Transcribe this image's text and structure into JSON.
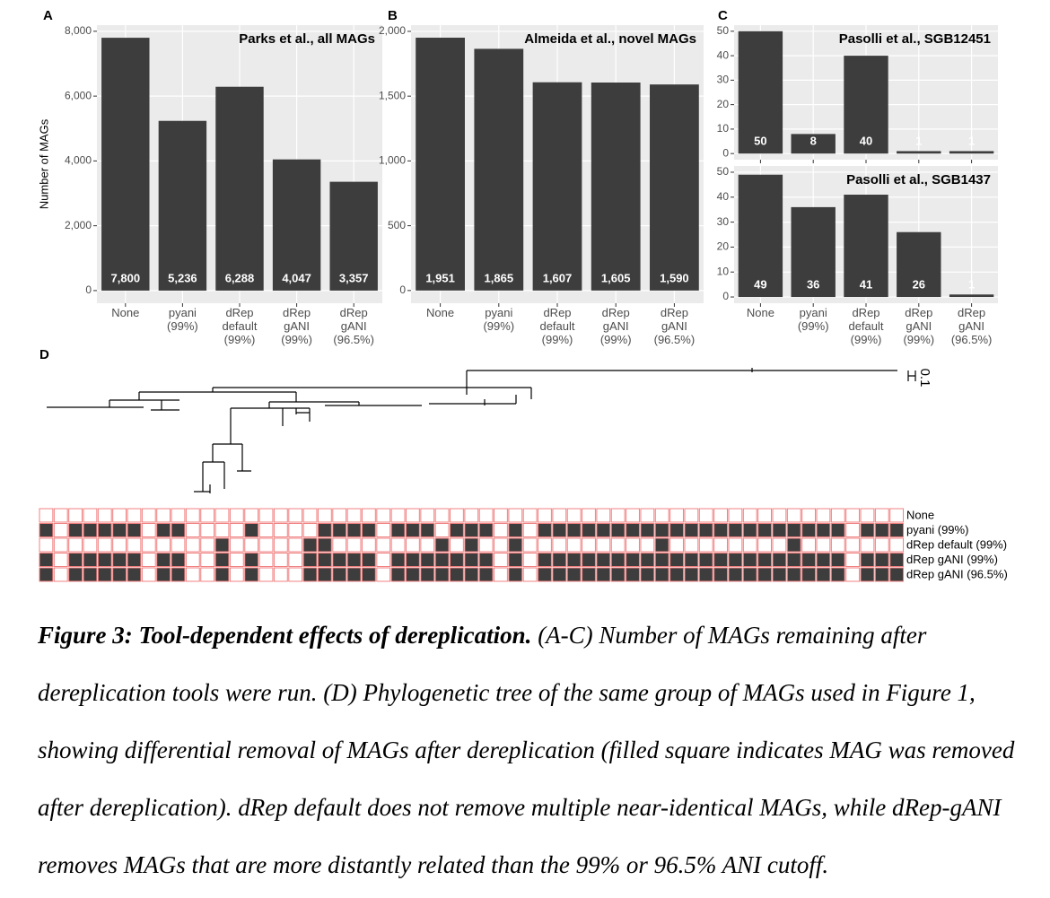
{
  "chart_data": [
    {
      "panel": "A",
      "type": "bar",
      "title": "Parks et al., all MAGs",
      "y_label": "Number of MAGs",
      "categories": [
        [
          "None"
        ],
        [
          "pyani",
          "(99%)"
        ],
        [
          "dRep",
          "default",
          "(99%)"
        ],
        [
          "dRep",
          "gANI",
          "(99%)"
        ],
        [
          "dRep",
          "gANI",
          "(96.5%)"
        ]
      ],
      "values": [
        7800,
        5236,
        6288,
        4047,
        3357
      ],
      "value_labels": [
        "7,800",
        "5,236",
        "6,288",
        "4,047",
        "3,357"
      ],
      "ylim": [
        -390,
        8190
      ],
      "yticks": [
        0,
        {
          "value": 2000,
          "label": "2,000"
        },
        {
          "value": 4000,
          "label": "4,000"
        },
        {
          "value": 6000,
          "label": "6,000"
        },
        {
          "value": 8000,
          "label": "8,000"
        }
      ],
      "color": "#3d3d3d",
      "grid": true
    },
    {
      "panel": "B",
      "type": "bar",
      "title": "Almeida et al., novel MAGs",
      "categories": [
        [
          "None"
        ],
        [
          "pyani",
          "(99%)"
        ],
        [
          "dRep",
          "default",
          "(99%)"
        ],
        [
          "dRep",
          "gANI",
          "(99%)"
        ],
        [
          "dRep",
          "gANI",
          "(96.5%)"
        ]
      ],
      "values": [
        1951,
        1865,
        1607,
        1605,
        1590
      ],
      "value_labels": [
        "1,951",
        "1,865",
        "1,607",
        "1,605",
        "1,590"
      ],
      "ylim": [
        -98,
        2048
      ],
      "yticks": [
        0,
        500,
        {
          "value": 1000,
          "label": "1,000"
        },
        {
          "value": 1500,
          "label": "1,500"
        },
        {
          "value": 2000,
          "label": "2,000"
        }
      ],
      "color": "#3d3d3d",
      "grid": true
    },
    {
      "panel": "C",
      "type": "bar",
      "title": "Pasolli et al., SGB12451",
      "values": [
        50,
        8,
        40,
        1,
        1
      ],
      "ylim": [
        -2.5,
        52.5
      ],
      "yticks": [
        0,
        10,
        20,
        30,
        40,
        50
      ],
      "color": "#3d3d3d",
      "grid": true
    },
    {
      "type": "bar",
      "title": "Pasolli et al., SGB1437",
      "categories": [
        [
          "None"
        ],
        [
          "pyani",
          "(99%)"
        ],
        [
          "dRep",
          "default",
          "(99%)"
        ],
        [
          "dRep",
          "gANI",
          "(99%)"
        ],
        [
          "dRep",
          "gANI",
          "(96.5%)"
        ]
      ],
      "values": [
        49,
        36,
        41,
        26,
        1
      ],
      "ylim": [
        -2.5,
        52.5
      ],
      "yticks": [
        0,
        10,
        20,
        30,
        40,
        50
      ],
      "color": "#3d3d3d",
      "grid": true
    }
  ],
  "heatmap": {
    "panel": "D",
    "filled_color": "#3d3d3d",
    "empty_color": "#ffffff",
    "border_color": "#f08080",
    "rows": [
      {
        "name": "None",
        "cells": [
          0,
          0,
          0,
          0,
          0,
          0,
          0,
          0,
          0,
          0,
          0,
          0,
          0,
          0,
          0,
          0,
          0,
          0,
          0,
          0,
          0,
          0,
          0,
          0,
          0,
          0,
          0,
          0,
          0,
          0,
          0,
          0,
          0,
          0,
          0,
          0,
          0,
          0,
          0,
          0,
          0,
          0,
          0,
          0,
          0,
          0,
          0,
          0,
          0,
          0,
          0,
          0,
          0,
          0,
          0,
          0,
          0,
          0,
          0
        ]
      },
      {
        "name": "pyani (99%)",
        "cells": [
          1,
          0,
          1,
          1,
          1,
          1,
          1,
          0,
          1,
          1,
          0,
          0,
          0,
          0,
          1,
          0,
          0,
          0,
          0,
          1,
          1,
          1,
          1,
          0,
          1,
          1,
          1,
          0,
          1,
          1,
          1,
          0,
          1,
          0,
          1,
          1,
          1,
          1,
          1,
          1,
          1,
          1,
          1,
          1,
          1,
          1,
          1,
          1,
          1,
          1,
          1,
          1,
          1,
          1,
          1,
          0,
          1,
          1,
          1
        ]
      },
      {
        "name": "dRep default (99%)",
        "cells": [
          0,
          0,
          0,
          0,
          0,
          0,
          0,
          0,
          0,
          0,
          0,
          0,
          1,
          0,
          0,
          0,
          0,
          0,
          1,
          1,
          0,
          0,
          0,
          0,
          0,
          0,
          0,
          1,
          0,
          1,
          0,
          0,
          1,
          0,
          0,
          0,
          0,
          0,
          0,
          0,
          0,
          0,
          1,
          0,
          0,
          0,
          0,
          0,
          0,
          0,
          0,
          1,
          0,
          0,
          0,
          0,
          0,
          0,
          0
        ]
      },
      {
        "name": "dRep gANI (99%)",
        "cells": [
          1,
          0,
          1,
          1,
          1,
          1,
          1,
          0,
          1,
          1,
          0,
          0,
          1,
          0,
          1,
          0,
          0,
          0,
          1,
          1,
          1,
          1,
          1,
          0,
          1,
          1,
          1,
          1,
          1,
          1,
          1,
          0,
          1,
          0,
          1,
          1,
          1,
          1,
          1,
          1,
          1,
          1,
          1,
          1,
          1,
          1,
          1,
          1,
          1,
          1,
          1,
          1,
          1,
          1,
          1,
          0,
          1,
          1,
          1
        ]
      },
      {
        "name": "dRep gANI (96.5%)",
        "cells": [
          1,
          0,
          1,
          1,
          1,
          1,
          1,
          0,
          1,
          1,
          0,
          0,
          1,
          0,
          1,
          0,
          0,
          0,
          1,
          1,
          1,
          1,
          1,
          0,
          1,
          1,
          1,
          1,
          1,
          1,
          1,
          0,
          1,
          0,
          1,
          1,
          1,
          1,
          1,
          1,
          1,
          1,
          1,
          1,
          1,
          1,
          1,
          1,
          1,
          1,
          1,
          1,
          1,
          1,
          1,
          0,
          1,
          1,
          1
        ]
      }
    ]
  },
  "tree": {
    "scale_label": "0.1"
  },
  "caption": {
    "title": "Figure 3: Tool-dependent effects of dereplication.",
    "text": "(A-C) Number of MAGs remaining after dereplication tools were run. (D) Phylogenetic tree of the same group of MAGs used in Figure 1, showing differential removal of MAGs after dereplication (filled square indicates MAG was removed after dereplication). dRep default does not remove multiple near-identical MAGs, while dRep-gANI removes MAGs that are more distantly related than the 99% or 96.5% ANI cutoff."
  }
}
